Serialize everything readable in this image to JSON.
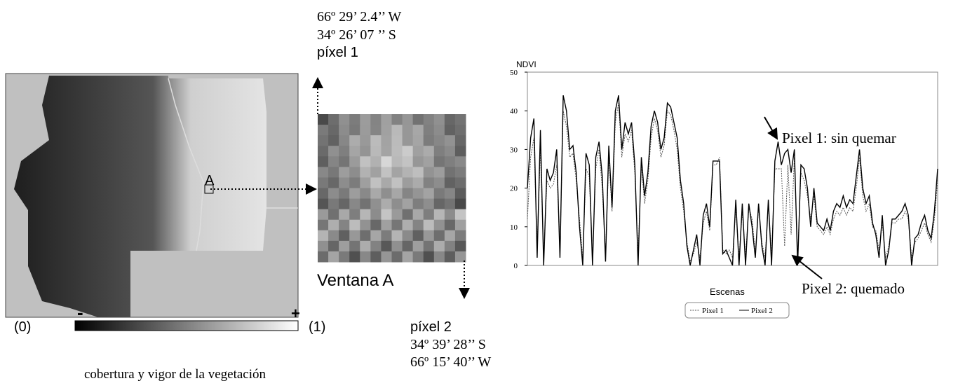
{
  "figure": {
    "coord1_lon": "66º 29’ 2.4’’ W",
    "coord1_lat": "34º 26’ 07 ’’ S",
    "pixel1_label": "píxel 1",
    "window_marker": "A",
    "window_label": "Ventana A",
    "pixel2_label": "píxel 2",
    "coord2_lat": "34º 39’ 28’’ S",
    "coord2_lon": "66º 15’ 40’’ W",
    "scale_min_sign": "-",
    "scale_max_sign": "+",
    "scale_min": "(0)",
    "scale_max": "(1)",
    "scale_caption": "cobertura y vigor de la vegetación"
  },
  "chart_data": {
    "type": "line",
    "y_label": "NDVI",
    "x_label": "Escenas",
    "ylim": [
      0,
      50
    ],
    "yticks": [
      0,
      10,
      20,
      30,
      40,
      50
    ],
    "annotations": [
      "Pixel 1: sin quemar",
      "Pixel 2: quemado"
    ],
    "series": [
      {
        "name": "Pixel 1",
        "color": "#555555",
        "dash": "dotted",
        "values": [
          12,
          28,
          33,
          5,
          30,
          2,
          22,
          20,
          21,
          26,
          4,
          40,
          36,
          28,
          29,
          22,
          12,
          2,
          25,
          23,
          2,
          25,
          30,
          20,
          3,
          28,
          14,
          37,
          42,
          28,
          34,
          32,
          35,
          24,
          3,
          26,
          16,
          22,
          33,
          38,
          35,
          28,
          31,
          40,
          39,
          35,
          30,
          20,
          14,
          6,
          1,
          3,
          6,
          2,
          11,
          14,
          9,
          26,
          26,
          28,
          4,
          3,
          4,
          2,
          15,
          2,
          14,
          2,
          15,
          12,
          3,
          15,
          6,
          2,
          16,
          2,
          25,
          25,
          25,
          5,
          26,
          8,
          28,
          2,
          24,
          22,
          18,
          12,
          18,
          10,
          9,
          8,
          10,
          8,
          12,
          14,
          13,
          15,
          13,
          15,
          14,
          20,
          28,
          18,
          14,
          16,
          10,
          9,
          4,
          11,
          2,
          5,
          11,
          11,
          12,
          12,
          14,
          12,
          2,
          6,
          7,
          9,
          11,
          8,
          6,
          12,
          22
        ]
      },
      {
        "name": "Pixel 2",
        "color": "#000000",
        "dash": "solid",
        "values": [
          20,
          33,
          38,
          2,
          35,
          0,
          25,
          22,
          24,
          30,
          2,
          44,
          40,
          30,
          31,
          24,
          10,
          0,
          29,
          26,
          0,
          28,
          32,
          23,
          1,
          31,
          15,
          40,
          44,
          30,
          37,
          34,
          37,
          26,
          0,
          28,
          18,
          24,
          36,
          40,
          37,
          30,
          33,
          42,
          41,
          37,
          33,
          22,
          16,
          5,
          0,
          4,
          8,
          0,
          13,
          16,
          10,
          27,
          27,
          27,
          3,
          4,
          2,
          0,
          17,
          0,
          16,
          0,
          16,
          10,
          2,
          16,
          5,
          0,
          17,
          0,
          27,
          32,
          26,
          29,
          30,
          24,
          30,
          0,
          26,
          25,
          20,
          10,
          20,
          11,
          10,
          9,
          12,
          9,
          14,
          16,
          15,
          18,
          15,
          17,
          16,
          23,
          30,
          20,
          16,
          18,
          11,
          8,
          2,
          13,
          0,
          4,
          12,
          12,
          13,
          14,
          16,
          13,
          0,
          7,
          8,
          11,
          13,
          9,
          7,
          14,
          25
        ]
      }
    ]
  }
}
